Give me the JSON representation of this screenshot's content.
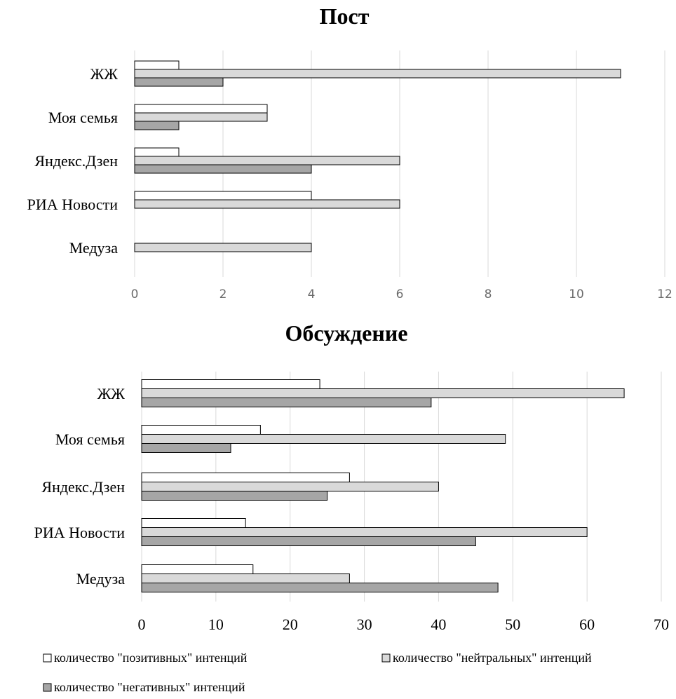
{
  "legend": [
    {
      "label": "количество \"позитивных\" интенций",
      "color": "#ffffff"
    },
    {
      "label": "количество \"нейтральных\" интенций",
      "color": "#d9d9d9"
    },
    {
      "label": "количество \"негативных\" интенций",
      "color": "#a6a6a6"
    }
  ],
  "chart_data": [
    {
      "type": "bar",
      "orientation": "horizontal",
      "title": "Пост",
      "categories": [
        "ЖЖ",
        "Моя семья",
        "Яндекс.Дзен",
        "РИА Новости",
        "Медуза"
      ],
      "series": [
        {
          "name": "количество \"позитивных\" интенций",
          "color": "#ffffff",
          "values": [
            1,
            3,
            1,
            4,
            0
          ]
        },
        {
          "name": "количество \"нейтральных\" интенций",
          "color": "#d9d9d9",
          "values": [
            11,
            3,
            6,
            6,
            4
          ]
        },
        {
          "name": "количество \"негативных\" интенций",
          "color": "#a6a6a6",
          "values": [
            2,
            1,
            4,
            0,
            0
          ]
        }
      ],
      "xlim": [
        0,
        12
      ],
      "ticks": [
        0,
        2,
        4,
        6,
        8,
        10,
        12
      ],
      "grid": true
    },
    {
      "type": "bar",
      "orientation": "horizontal",
      "title": "Обсуждение",
      "categories": [
        "ЖЖ",
        "Моя семья",
        "Яндекс.Дзен",
        "РИА Новости",
        "Медуза"
      ],
      "series": [
        {
          "name": "количество \"позитивных\" интенций",
          "color": "#ffffff",
          "values": [
            24,
            16,
            28,
            14,
            15
          ]
        },
        {
          "name": "количество \"нейтральных\" интенций",
          "color": "#d9d9d9",
          "values": [
            65,
            49,
            40,
            60,
            28
          ]
        },
        {
          "name": "количество \"негативных\" интенций",
          "color": "#a6a6a6",
          "values": [
            39,
            12,
            25,
            45,
            48
          ]
        }
      ],
      "xlim": [
        0,
        70
      ],
      "ticks": [
        0,
        10,
        20,
        30,
        40,
        50,
        60,
        70
      ],
      "grid": true
    }
  ]
}
